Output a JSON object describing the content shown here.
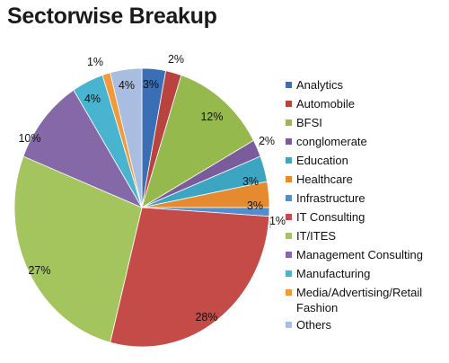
{
  "chart_data": {
    "type": "pie",
    "title": "Sectorwise Breakup",
    "start_angle_deg": 0,
    "direction": "clockwise",
    "slices": [
      {
        "name": "Analytics",
        "value": 3,
        "label": "3%",
        "color": "#3a6fb5"
      },
      {
        "name": "Automobile",
        "value": 2,
        "label": "2%",
        "color": "#b8433f"
      },
      {
        "name": "BFSI",
        "value": 12,
        "label": "12%",
        "color": "#96b94d"
      },
      {
        "name": "conglomerate",
        "value": 2,
        "label": "2%",
        "color": "#7a5b9c"
      },
      {
        "name": "Education",
        "value": 3,
        "label": "3%",
        "color": "#3ba5c2"
      },
      {
        "name": "Healthcare",
        "value": 3,
        "label": "3%",
        "color": "#e58a2e"
      },
      {
        "name": "Infrastructure",
        "value": 1,
        "label": "1%",
        "color": "#4f8ed1"
      },
      {
        "name": "IT Consulting",
        "value": 28,
        "label": "28%",
        "color": "#c44b47"
      },
      {
        "name": "IT/ITES",
        "value": 27,
        "label": "27%",
        "color": "#a4c45d"
      },
      {
        "name": "Management Consulting",
        "value": 10,
        "label": "10%",
        "color": "#8468a8"
      },
      {
        "name": "Manufacturing",
        "value": 4,
        "label": "4%",
        "color": "#48b4cf"
      },
      {
        "name": "Media/Advertising/Retail Fashion",
        "value": 1,
        "label": "1%",
        "color": "#f1993b"
      },
      {
        "name": "Others",
        "value": 4,
        "label": "4%",
        "color": "#a9bde0"
      }
    ],
    "legend_position": "right"
  }
}
